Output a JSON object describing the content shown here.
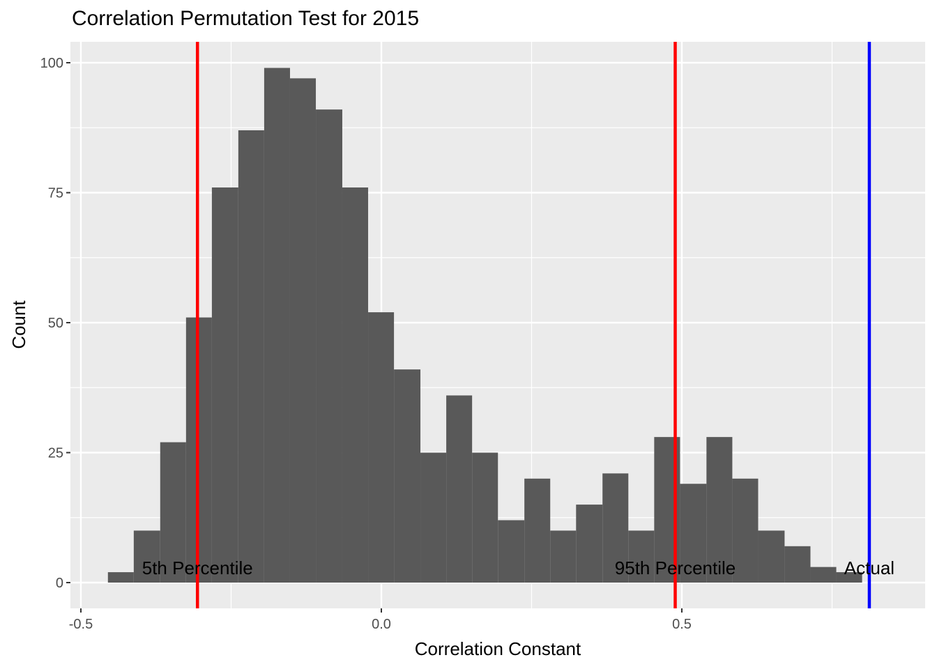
{
  "chart_data": {
    "type": "bar",
    "title": "Correlation Permutation Test for 2015",
    "xlabel": "Correlation Constant",
    "ylabel": "Count",
    "xlim": [
      -0.5,
      0.9
    ],
    "ylim": [
      -10,
      108
    ],
    "xticks": [
      {
        "value": -0.5,
        "label": "-0.5"
      },
      {
        "value": 0.0,
        "label": "0.0"
      },
      {
        "value": 0.5,
        "label": "0.5"
      }
    ],
    "yticks": [
      {
        "value": 0,
        "label": "0"
      },
      {
        "value": 25,
        "label": "25"
      },
      {
        "value": 50,
        "label": "50"
      },
      {
        "value": 75,
        "label": "75"
      },
      {
        "value": 100,
        "label": "100"
      }
    ],
    "bin_edges": [
      -0.455,
      -0.412,
      -0.368,
      -0.325,
      -0.282,
      -0.238,
      -0.195,
      -0.152,
      -0.109,
      -0.065,
      -0.022,
      0.021,
      0.065,
      0.108,
      0.151,
      0.194,
      0.238,
      0.281,
      0.324,
      0.368,
      0.411,
      0.454,
      0.497,
      0.541,
      0.584,
      0.627,
      0.671,
      0.714,
      0.757,
      0.8
    ],
    "counts": [
      2,
      10,
      27,
      51,
      76,
      87,
      99,
      97,
      91,
      76,
      52,
      41,
      25,
      36,
      25,
      12,
      20,
      10,
      15,
      21,
      10,
      28,
      19,
      28,
      20,
      10,
      7,
      3,
      2
    ],
    "bar_color": "#595959",
    "panel_background": "#ebebeb",
    "grid": true,
    "vlines": [
      {
        "x": -0.306,
        "color": "#ff0000",
        "label": "5th Percentile"
      },
      {
        "x": 0.489,
        "color": "#ff0000",
        "label": "95th Percentile"
      },
      {
        "x": 0.812,
        "color": "#0000ff",
        "label": "Actual"
      }
    ]
  }
}
